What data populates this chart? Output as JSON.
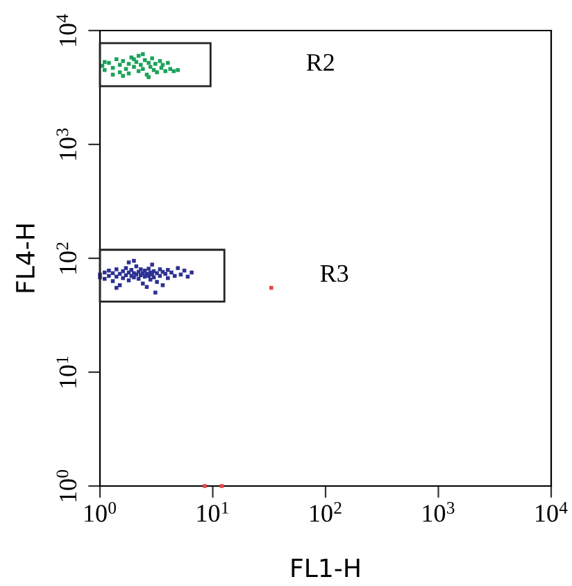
{
  "chart_data": {
    "type": "scatter",
    "xlabel": "FL1-H",
    "ylabel": "FL4-H",
    "log": "xy",
    "xlim": [
      1,
      10000
    ],
    "ylim": [
      1,
      10000
    ],
    "xticks": [
      {
        "value": 1,
        "label": "10$^{0}$"
      },
      {
        "value": 10,
        "label": "10$^{1}$"
      },
      {
        "value": 100,
        "label": "10$^{2}$"
      },
      {
        "value": 1000,
        "label": "10$^{3}$"
      },
      {
        "value": 10000,
        "label": "10$^{4}$"
      }
    ],
    "yticks": [
      {
        "value": 1,
        "label": "10$^{0}$"
      },
      {
        "value": 10,
        "label": "10$^{1}$"
      },
      {
        "value": 100,
        "label": "10$^{2}$"
      },
      {
        "value": 1000,
        "label": "10$^{3}$"
      },
      {
        "value": 10000,
        "label": "10$^{4}$"
      }
    ],
    "grid": false,
    "legend": false,
    "marker": "square",
    "annotations": [
      "R2",
      "R3"
    ],
    "series": [
      {
        "color": "#1aa35a",
        "x": [
          1.05,
          1.1,
          1.2,
          1.3,
          1.4,
          1.5,
          1.5,
          1.6,
          1.7,
          1.8,
          1.8,
          1.9,
          2.0,
          2.1,
          2.2,
          2.2,
          2.3,
          2.4,
          2.5,
          2.6,
          2.7,
          2.8,
          2.9,
          3.0,
          3.1,
          3.2,
          3.4,
          3.5,
          3.6,
          3.8,
          4.0,
          4.2,
          4.5,
          4.9,
          1.3,
          1.6,
          2.0,
          2.4,
          2.7,
          1.1
        ],
        "values": [
          4900,
          4500,
          5200,
          4700,
          5600,
          4300,
          5000,
          5400,
          4600,
          5100,
          4200,
          5800,
          4800,
          5300,
          4400,
          6000,
          5000,
          4600,
          5500,
          4100,
          5200,
          4800,
          5700,
          4500,
          5100,
          4300,
          5400,
          4700,
          5000,
          4400,
          5200,
          4600,
          4400,
          4500,
          4100,
          4000,
          5600,
          6200,
          3900,
          5300
        ]
      },
      {
        "color": "#2e3192",
        "x": [
          1.0,
          1.0,
          1.1,
          1.1,
          1.2,
          1.2,
          1.3,
          1.3,
          1.4,
          1.4,
          1.5,
          1.5,
          1.6,
          1.6,
          1.7,
          1.7,
          1.8,
          1.8,
          1.9,
          1.9,
          2.0,
          2.0,
          2.1,
          2.1,
          2.2,
          2.2,
          2.3,
          2.3,
          2.4,
          2.4,
          2.5,
          2.5,
          2.6,
          2.6,
          2.7,
          2.7,
          2.8,
          2.8,
          2.9,
          2.9,
          3.0,
          3.0,
          3.2,
          3.2,
          3.4,
          3.4,
          3.6,
          3.6,
          3.8,
          4.0,
          4.0,
          4.3,
          4.6,
          4.9,
          5.2,
          5.6,
          6.0,
          6.5,
          2.0,
          1.8,
          3.1,
          1.4
        ],
        "values": [
          72,
          68,
          75,
          66,
          78,
          70,
          63,
          74,
          80,
          69,
          73,
          58,
          77,
          67,
          82,
          71,
          75,
          64,
          79,
          70,
          74,
          68,
          85,
          72,
          76,
          66,
          80,
          71,
          74,
          60,
          78,
          69,
          73,
          56,
          81,
          70,
          75,
          65,
          88,
          72,
          77,
          68,
          74,
          62,
          80,
          70,
          76,
          58,
          73,
          79,
          67,
          75,
          70,
          82,
          72,
          78,
          69,
          75,
          95,
          92,
          50,
          55
        ]
      },
      {
        "color": "#e8454a",
        "x": [
          33,
          8.5,
          12
        ],
        "values": [
          55,
          1,
          1
        ]
      }
    ]
  }
}
